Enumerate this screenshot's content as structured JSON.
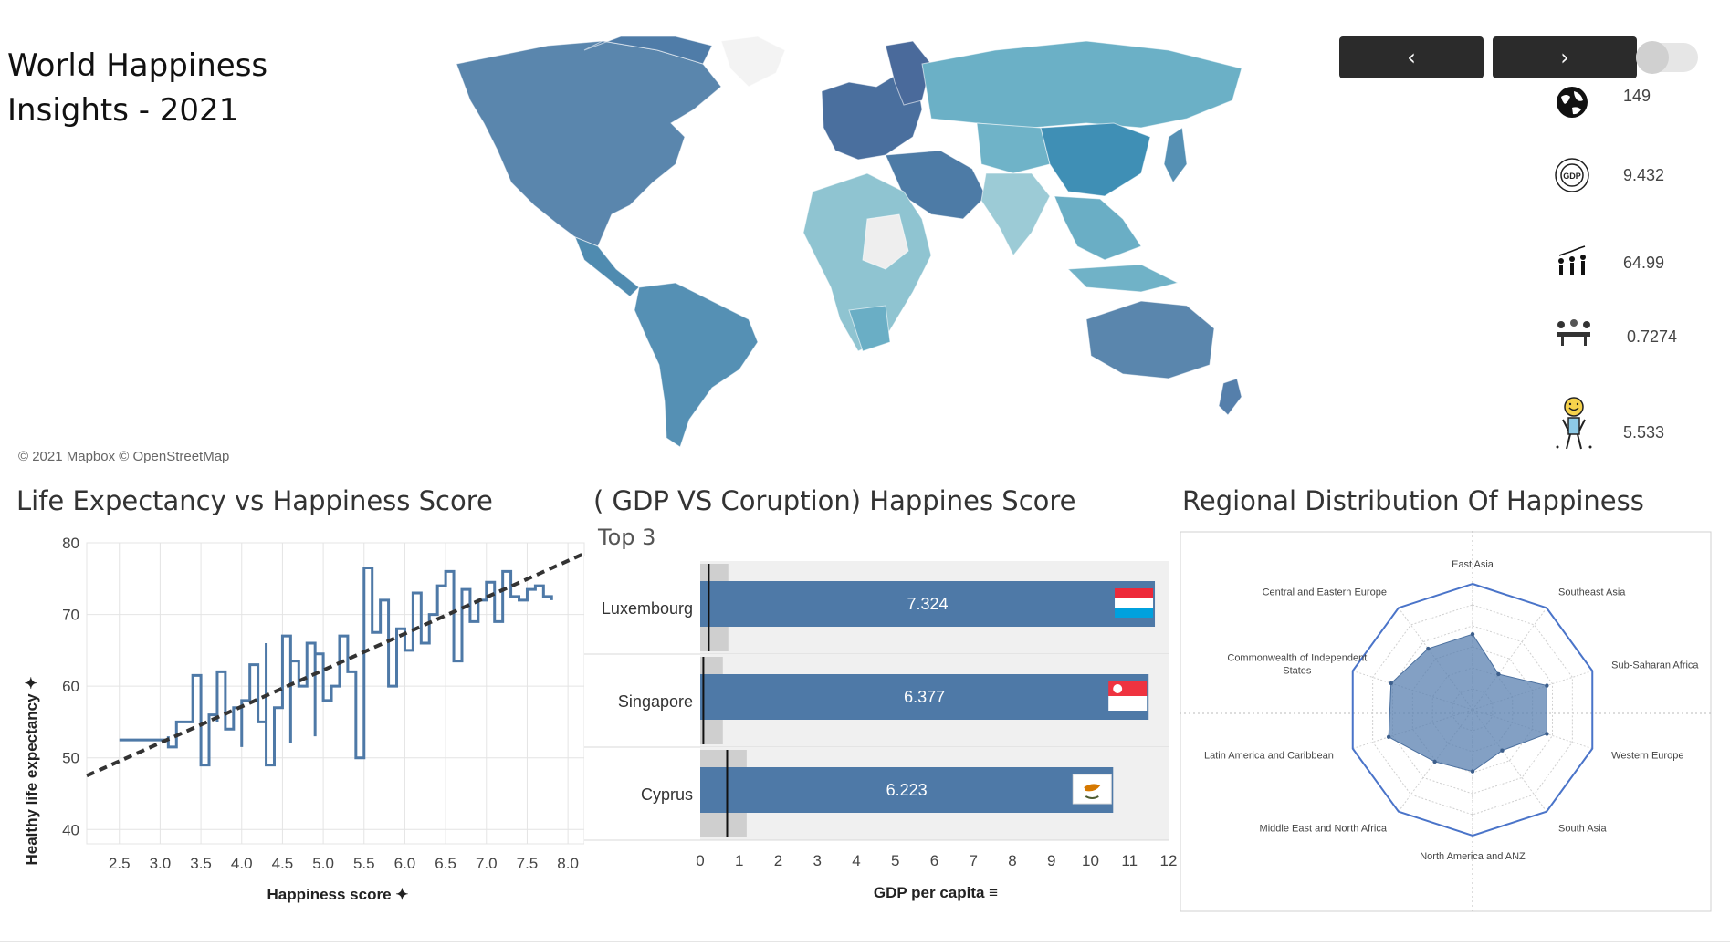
{
  "dashboard": {
    "title_line1": "World Happiness",
    "title_line2": "Insights -  2021"
  },
  "map": {
    "attribution": "© 2021 Mapbox © OpenStreetMap",
    "colors": {
      "ocean": "#ffffff",
      "light": "#a9d3dc",
      "mid": "#5ea6bd",
      "dark": "#4d7fa8",
      "nodata": "#eeeeee"
    }
  },
  "nav": {
    "prev_glyph": "‹",
    "next_glyph": "›"
  },
  "kpis": [
    {
      "icon": "globe-icon",
      "value": "149"
    },
    {
      "icon": "gdp-coin-icon",
      "value": "9.432"
    },
    {
      "icon": "people-growth-icon",
      "value": "64.99"
    },
    {
      "icon": "meeting-table-icon",
      "value": "0.7274"
    },
    {
      "icon": "happy-person-icon",
      "value": "5.533"
    }
  ],
  "scatter": {
    "title": "Life Expectancy vs Happiness Score",
    "xlabel": "Happiness score ✦",
    "ylabel": "Healthy life expectancy ✦",
    "xticks": [
      "2.5",
      "3.0",
      "3.5",
      "4.0",
      "4.5",
      "5.0",
      "5.5",
      "6.0",
      "6.5",
      "7.0",
      "7.5",
      "8.0"
    ],
    "yticks": [
      "40",
      "50",
      "60",
      "70",
      "80"
    ]
  },
  "gdp_chart": {
    "title": "( GDP  VS Coruption) Happines Score",
    "subtitle": "Top 3",
    "xlabel": "GDP per capita ≡",
    "xticks": [
      "0",
      "1",
      "2",
      "3",
      "4",
      "5",
      "6",
      "7",
      "8",
      "9",
      "10",
      "11",
      "12"
    ]
  },
  "radar": {
    "title": "Regional Distribution Of Happiness",
    "labels": [
      "East Asia",
      "Southeast Asia",
      "Sub-Saharan Africa",
      "Western Europe",
      "South Asia",
      "North America and ANZ",
      "Middle East and North Africa",
      "Latin America and Caribbean",
      "Commonwealth of Independent States",
      "Central and Eastern Europe"
    ]
  },
  "chart_data": [
    {
      "type": "line",
      "title": "Life Expectancy vs Happiness Score",
      "xlabel": "Happiness score",
      "ylabel": "Healthy life expectancy",
      "xlim": [
        2.1,
        8.2
      ],
      "ylim": [
        38,
        80
      ],
      "series": [
        {
          "x": [
            2.5,
            3.1,
            3.1,
            3.2,
            3.4,
            3.5,
            3.6,
            3.7,
            3.7,
            3.8,
            3.9,
            4.0,
            4.0,
            4.1,
            4.2,
            4.3,
            4.3,
            4.4,
            4.5,
            4.6,
            4.6,
            4.7,
            4.8,
            4.9,
            4.9,
            5.0,
            5.1,
            5.2,
            5.3,
            5.4,
            5.5,
            5.6,
            5.7,
            5.8,
            5.9,
            6.0,
            6.1,
            6.2,
            6.3,
            6.4,
            6.5,
            6.6,
            6.7,
            6.8,
            6.9,
            7.0,
            7.1,
            7.2,
            7.3,
            7.4,
            7.5,
            7.6,
            7.7,
            7.8
          ],
          "y": [
            52.5,
            53.0,
            51.5,
            55.0,
            61.5,
            49.0,
            56.0,
            55.0,
            62.0,
            54.0,
            57.0,
            51.5,
            58.0,
            63.0,
            55.0,
            66.0,
            49.0,
            57.0,
            67.0,
            52.0,
            63.5,
            60.0,
            66.0,
            53.0,
            64.5,
            58.0,
            60.0,
            67.0,
            62.0,
            50.0,
            76.5,
            67.5,
            72.0,
            60.0,
            68.0,
            65.0,
            73.0,
            66.0,
            70.0,
            74.0,
            76.0,
            63.5,
            73.5,
            69.0,
            72.0,
            74.5,
            69.0,
            76.0,
            72.5,
            72.0,
            73.5,
            74.0,
            72.5,
            72.0
          ]
        }
      ],
      "trendline": {
        "x": [
          2.1,
          8.2
        ],
        "y": [
          47.5,
          78.5
        ]
      }
    },
    {
      "type": "bar",
      "title": "( GDP  VS Coruption) Happines Score",
      "subtitle": "Top 3",
      "xlabel": "GDP per capita",
      "xlim": [
        0,
        12
      ],
      "categories": [
        "Luxembourg",
        "Singapore",
        "Cyprus"
      ],
      "values": [
        11.65,
        11.49,
        10.58
      ],
      "labels": [
        "7.324",
        "6.377",
        "6.223"
      ],
      "reference_lines": [
        0.22,
        0.08,
        0.69
      ],
      "flags": [
        "luxembourg-flag-icon",
        "singapore-flag-icon",
        "cyprus-flag-icon"
      ],
      "bar_color": "#4e79a7"
    },
    {
      "type": "radar",
      "title": "Regional Distribution Of Happiness",
      "categories": [
        "East Asia",
        "Southeast Asia",
        "Sub-Saharan Africa",
        "Western Europe",
        "South Asia",
        "North America and ANZ",
        "Middle East and North Africa",
        "Latin America and Caribbean",
        "Commonwealth of Independent States",
        "Central and Eastern Europe"
      ],
      "values": [
        0.6,
        0.35,
        0.62,
        0.62,
        0.4,
        0.49,
        0.51,
        0.7,
        0.68,
        0.6
      ],
      "fill_color": "#5a80b0"
    }
  ]
}
